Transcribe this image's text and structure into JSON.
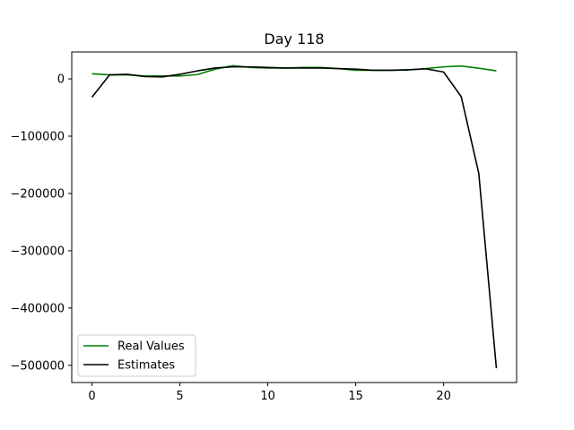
{
  "chart_data": {
    "type": "line",
    "title": "Day 118",
    "xlabel": "",
    "ylabel": "",
    "xlim": [
      -1.15,
      24.15
    ],
    "ylim": [
      -530000,
      47000
    ],
    "xticks": [
      0,
      5,
      10,
      15,
      20
    ],
    "yticks": [
      0,
      -100000,
      -200000,
      -300000,
      -400000,
      -500000
    ],
    "xtick_labels": [
      "0",
      "5",
      "10",
      "15",
      "20"
    ],
    "ytick_labels": [
      "0",
      "−100000",
      "−200000",
      "−300000",
      "−400000",
      "−500000"
    ],
    "grid": false,
    "legend_position": "lower-left",
    "x": [
      0,
      1,
      2,
      3,
      4,
      5,
      6,
      7,
      8,
      9,
      10,
      11,
      12,
      13,
      14,
      15,
      16,
      17,
      18,
      19,
      20,
      21,
      22,
      23
    ],
    "series": [
      {
        "name": "Real Values",
        "color": "#008000",
        "values": [
          9000,
          7000,
          7000,
          5000,
          5000,
          5000,
          7500,
          17000,
          23000,
          20000,
          19000,
          19000,
          20000,
          20000,
          18000,
          15000,
          15000,
          15000,
          15500,
          18000,
          21000,
          22500,
          18500,
          14000
        ]
      },
      {
        "name": "Estimates",
        "color": "#000000",
        "values": [
          -32000,
          7000,
          8000,
          4000,
          3500,
          8000,
          14000,
          19000,
          21000,
          21000,
          20000,
          19000,
          19000,
          19000,
          18000,
          17000,
          15000,
          15000,
          16000,
          17500,
          12000,
          -31000,
          -165000,
          -505000
        ]
      }
    ]
  }
}
